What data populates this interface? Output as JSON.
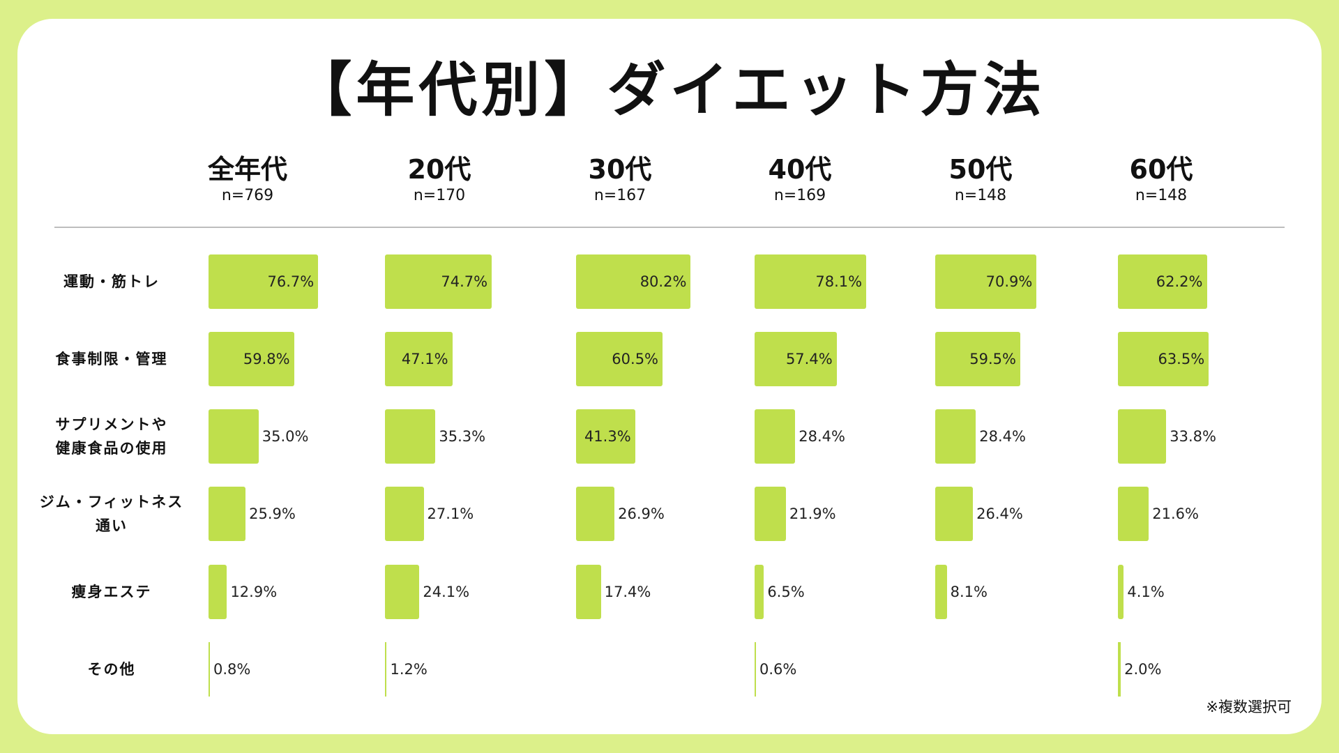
{
  "chart_data": {
    "type": "bar",
    "title": "【年代別】ダイエット方法",
    "note": "※複数選択可",
    "groups": [
      {
        "name": "全年代",
        "n": "n=769"
      },
      {
        "name": "20代",
        "n": "n=170"
      },
      {
        "name": "30代",
        "n": "n=167"
      },
      {
        "name": "40代",
        "n": "n=169"
      },
      {
        "name": "50代",
        "n": "n=148"
      },
      {
        "name": "60代",
        "n": "n=148"
      }
    ],
    "categories": [
      [
        "運動・筋トレ"
      ],
      [
        "食事制限・管理"
      ],
      [
        "サプリメントや",
        "健康食品の使用"
      ],
      [
        "ジム・フィットネス",
        "通い"
      ],
      [
        "痩身エステ"
      ],
      [
        "その他"
      ]
    ],
    "values": [
      [
        76.7,
        74.7,
        80.2,
        78.1,
        70.9,
        62.2
      ],
      [
        59.8,
        47.1,
        60.5,
        57.4,
        59.5,
        63.5
      ],
      [
        35.0,
        35.3,
        41.3,
        28.4,
        28.4,
        33.8
      ],
      [
        25.9,
        27.1,
        26.9,
        21.9,
        26.4,
        21.6
      ],
      [
        12.9,
        24.1,
        17.4,
        6.5,
        8.1,
        4.1
      ],
      [
        0.8,
        1.2,
        null,
        0.6,
        null,
        2.0
      ]
    ],
    "value_labels": [
      [
        "76.7%",
        "74.7%",
        "80.2%",
        "78.1%",
        "70.9%",
        "62.2%"
      ],
      [
        "59.8%",
        "47.1%",
        "60.5%",
        "57.4%",
        "59.5%",
        "63.5%"
      ],
      [
        "35.0%",
        "35.3%",
        "41.3%",
        "28.4%",
        "28.4%",
        "33.8%"
      ],
      [
        "25.9%",
        "27.1%",
        "26.9%",
        "21.9%",
        "26.4%",
        "21.6%"
      ],
      [
        "12.9%",
        "24.1%",
        "17.4%",
        "6.5%",
        "8.1%",
        "4.1%"
      ],
      [
        "0.8%",
        "1.2%",
        "",
        "0.6%",
        "",
        "2.0%"
      ]
    ],
    "colors": {
      "bar": "#bfdf4c",
      "background": "#dcf08a",
      "card": "#ffffff"
    }
  }
}
